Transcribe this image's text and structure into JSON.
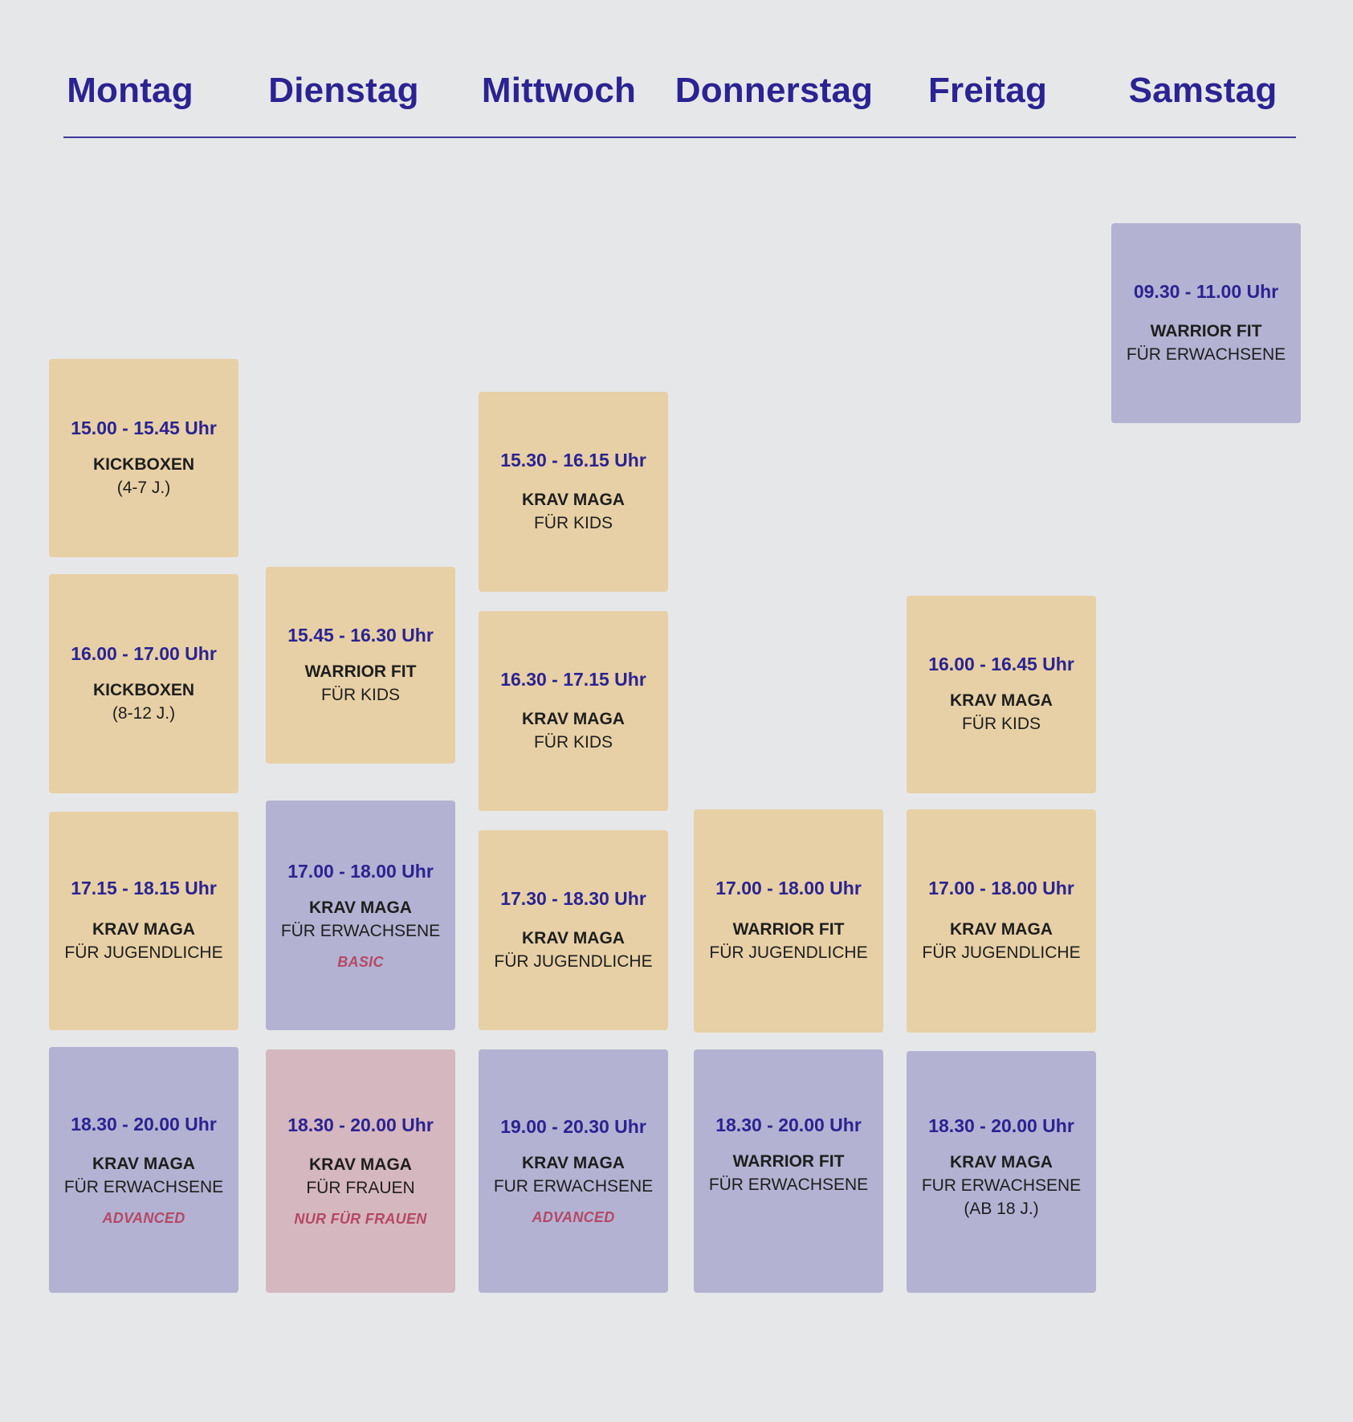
{
  "days": [
    "Montag",
    "Dienstag",
    "Mittwoch",
    "Donnerstag",
    "Freitag",
    "Samstag"
  ],
  "colors": {
    "heading": "#2b2392",
    "tan": "#e7d0a5",
    "lavender": "#b3b2d2",
    "pink": "#d5b7bf",
    "tag": "#b54865",
    "background": "#e6e7e9"
  },
  "classes": [
    {
      "day": "Montag",
      "time": "15.00 - 15.45 Uhr",
      "title": "KICKBOXEN",
      "sub": [
        "(4-7 J.)"
      ],
      "tag": "",
      "color": "tan"
    },
    {
      "day": "Montag",
      "time": "16.00 - 17.00 Uhr",
      "title": "KICKBOXEN",
      "sub": [
        "(8-12 J.)"
      ],
      "tag": "",
      "color": "tan"
    },
    {
      "day": "Montag",
      "time": "17.15 - 18.15 Uhr",
      "title": "KRAV MAGA",
      "sub": [
        "FÜR JUGENDLICHE"
      ],
      "tag": "",
      "color": "tan"
    },
    {
      "day": "Montag",
      "time": "18.30 - 20.00 Uhr",
      "title": "KRAV MAGA",
      "sub": [
        "FÜR ERWACHSENE"
      ],
      "tag": "ADVANCED",
      "color": "lavender"
    },
    {
      "day": "Dienstag",
      "time": "15.45 - 16.30 Uhr",
      "title": "WARRIOR FIT",
      "sub": [
        "FÜR KIDS"
      ],
      "tag": "",
      "color": "tan"
    },
    {
      "day": "Dienstag",
      "time": "17.00 - 18.00 Uhr",
      "title": "KRAV MAGA",
      "sub": [
        "FÜR ERWACHSENE"
      ],
      "tag": "BASIC",
      "color": "lavender"
    },
    {
      "day": "Dienstag",
      "time": "18.30 - 20.00 Uhr",
      "title": "KRAV MAGA",
      "sub": [
        "FÜR FRAUEN"
      ],
      "tag": "NUR FÜR FRAUEN",
      "color": "pink"
    },
    {
      "day": "Mittwoch",
      "time": "15.30 - 16.15 Uhr",
      "title": "KRAV MAGA",
      "sub": [
        "FÜR KIDS"
      ],
      "tag": "",
      "color": "tan"
    },
    {
      "day": "Mittwoch",
      "time": "16.30 - 17.15 Uhr",
      "title": "KRAV MAGA",
      "sub": [
        "FÜR KIDS"
      ],
      "tag": "",
      "color": "tan"
    },
    {
      "day": "Mittwoch",
      "time": "17.30 - 18.30 Uhr",
      "title": "KRAV MAGA",
      "sub": [
        "FÜR JUGENDLICHE"
      ],
      "tag": "",
      "color": "tan"
    },
    {
      "day": "Mittwoch",
      "time": "19.00 - 20.30 Uhr",
      "title": "KRAV MAGA",
      "sub": [
        "FUR ERWACHSENE"
      ],
      "tag": "ADVANCED",
      "color": "lavender"
    },
    {
      "day": "Donnerstag",
      "time": "17.00 - 18.00 Uhr",
      "title": "WARRIOR FIT",
      "sub": [
        "FÜR JUGENDLICHE"
      ],
      "tag": "",
      "color": "tan"
    },
    {
      "day": "Donnerstag",
      "time": "18.30 - 20.00 Uhr",
      "title": "WARRIOR FIT",
      "sub": [
        "FÜR ERWACHSENE"
      ],
      "tag": "",
      "color": "lavender"
    },
    {
      "day": "Freitag",
      "time": "16.00 - 16.45 Uhr",
      "title": "KRAV MAGA",
      "sub": [
        "FÜR KIDS"
      ],
      "tag": "",
      "color": "tan"
    },
    {
      "day": "Freitag",
      "time": "17.00 - 18.00 Uhr",
      "title": "KRAV MAGA",
      "sub": [
        "FÜR JUGENDLICHE"
      ],
      "tag": "",
      "color": "tan"
    },
    {
      "day": "Freitag",
      "time": "18.30 - 20.00 Uhr",
      "title": "KRAV MAGA",
      "sub": [
        "FUR ERWACHSENE",
        "(AB 18 J.)"
      ],
      "tag": "",
      "color": "lavender"
    },
    {
      "day": "Samstag",
      "time": "09.30 - 11.00 Uhr",
      "title": "WARRIOR FIT",
      "sub": [
        "FÜR ERWACHSENE"
      ],
      "tag": "",
      "color": "lavender"
    }
  ]
}
